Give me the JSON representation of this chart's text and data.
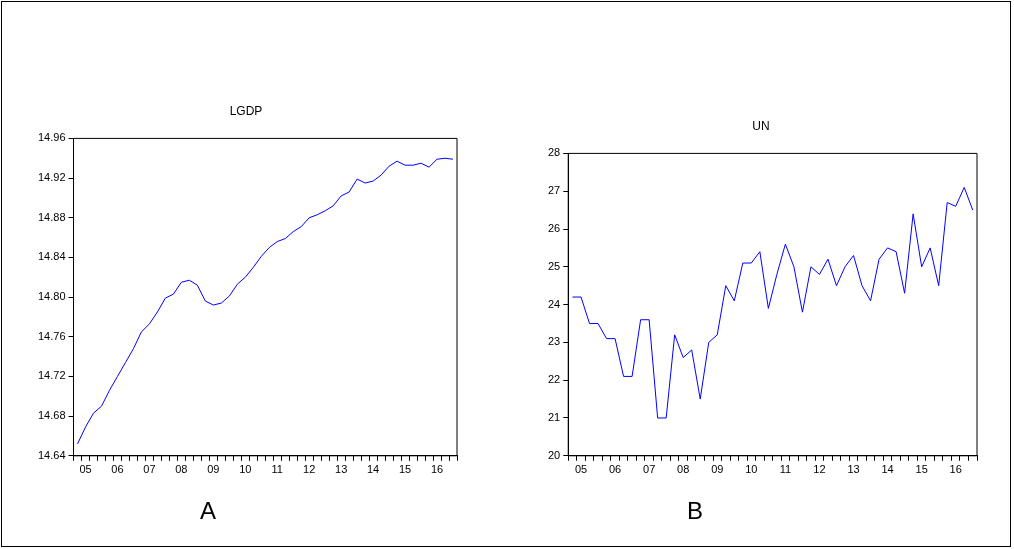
{
  "chart_data": [
    {
      "type": "line",
      "title": "LGDP",
      "categories": [
        null,
        "05",
        null,
        null,
        null,
        "06",
        null,
        null,
        null,
        "07",
        null,
        null,
        null,
        "08",
        null,
        null,
        null,
        "09",
        null,
        null,
        null,
        "10",
        null,
        null,
        null,
        "11",
        null,
        null,
        null,
        "12",
        null,
        null,
        null,
        "13",
        null,
        null,
        null,
        "14",
        null,
        null,
        null,
        "15",
        null,
        null,
        null,
        "16",
        null,
        null
      ],
      "series": [
        {
          "color": "#0000ff",
          "values": [
            14.652,
            14.669,
            14.683,
            14.69,
            14.706,
            14.72,
            14.734,
            14.748,
            14.765,
            14.773,
            14.785,
            14.799,
            14.803,
            14.815,
            14.817,
            14.812,
            14.796,
            14.792,
            14.794,
            14.801,
            14.813,
            14.82,
            14.83,
            14.841,
            14.85,
            14.856,
            14.859,
            14.866,
            14.871,
            14.88,
            14.883,
            14.887,
            14.892,
            14.902,
            14.906,
            14.919,
            14.915,
            14.917,
            14.923,
            14.932,
            14.937,
            14.933,
            14.933,
            14.935,
            14.931,
            14.939,
            14.94,
            14.939
          ]
        }
      ],
      "ylim": [
        14.64,
        14.96
      ],
      "yticks": [
        14.64,
        14.68,
        14.72,
        14.76,
        {
          "value": 14.8,
          "label": "14.80"
        },
        14.84,
        14.88,
        14.92,
        14.96
      ],
      "annotations": [
        "A"
      ]
    },
    {
      "type": "line",
      "title": "UN",
      "categories": [
        null,
        "05",
        null,
        null,
        null,
        "06",
        null,
        null,
        null,
        "07",
        null,
        null,
        null,
        "08",
        null,
        null,
        null,
        "09",
        null,
        null,
        null,
        "10",
        null,
        null,
        null,
        "11",
        null,
        null,
        null,
        "12",
        null,
        null,
        null,
        "13",
        null,
        null,
        null,
        "14",
        null,
        null,
        null,
        "15",
        null,
        null,
        null,
        "16",
        null,
        null
      ],
      "series": [
        {
          "color": "#0000ff",
          "values": [
            24.2,
            24.2,
            23.5,
            23.5,
            23.1,
            23.1,
            22.1,
            22.1,
            23.6,
            23.6,
            21.0,
            21.0,
            23.2,
            22.6,
            22.8,
            21.5,
            23.0,
            23.2,
            24.5,
            24.1,
            25.1,
            25.1,
            25.4,
            23.9,
            24.8,
            25.6,
            25.0,
            23.8,
            25.0,
            24.8,
            25.2,
            24.5,
            25.0,
            25.3,
            24.5,
            24.1,
            25.2,
            25.5,
            25.4,
            24.3,
            26.4,
            25.0,
            25.5,
            24.5,
            26.7,
            26.6,
            27.1,
            26.5
          ]
        }
      ],
      "ylim": [
        20,
        28
      ],
      "yticks": [
        20,
        21,
        22,
        23,
        24,
        25,
        26,
        27,
        28
      ],
      "annotations": [
        "B"
      ]
    }
  ]
}
